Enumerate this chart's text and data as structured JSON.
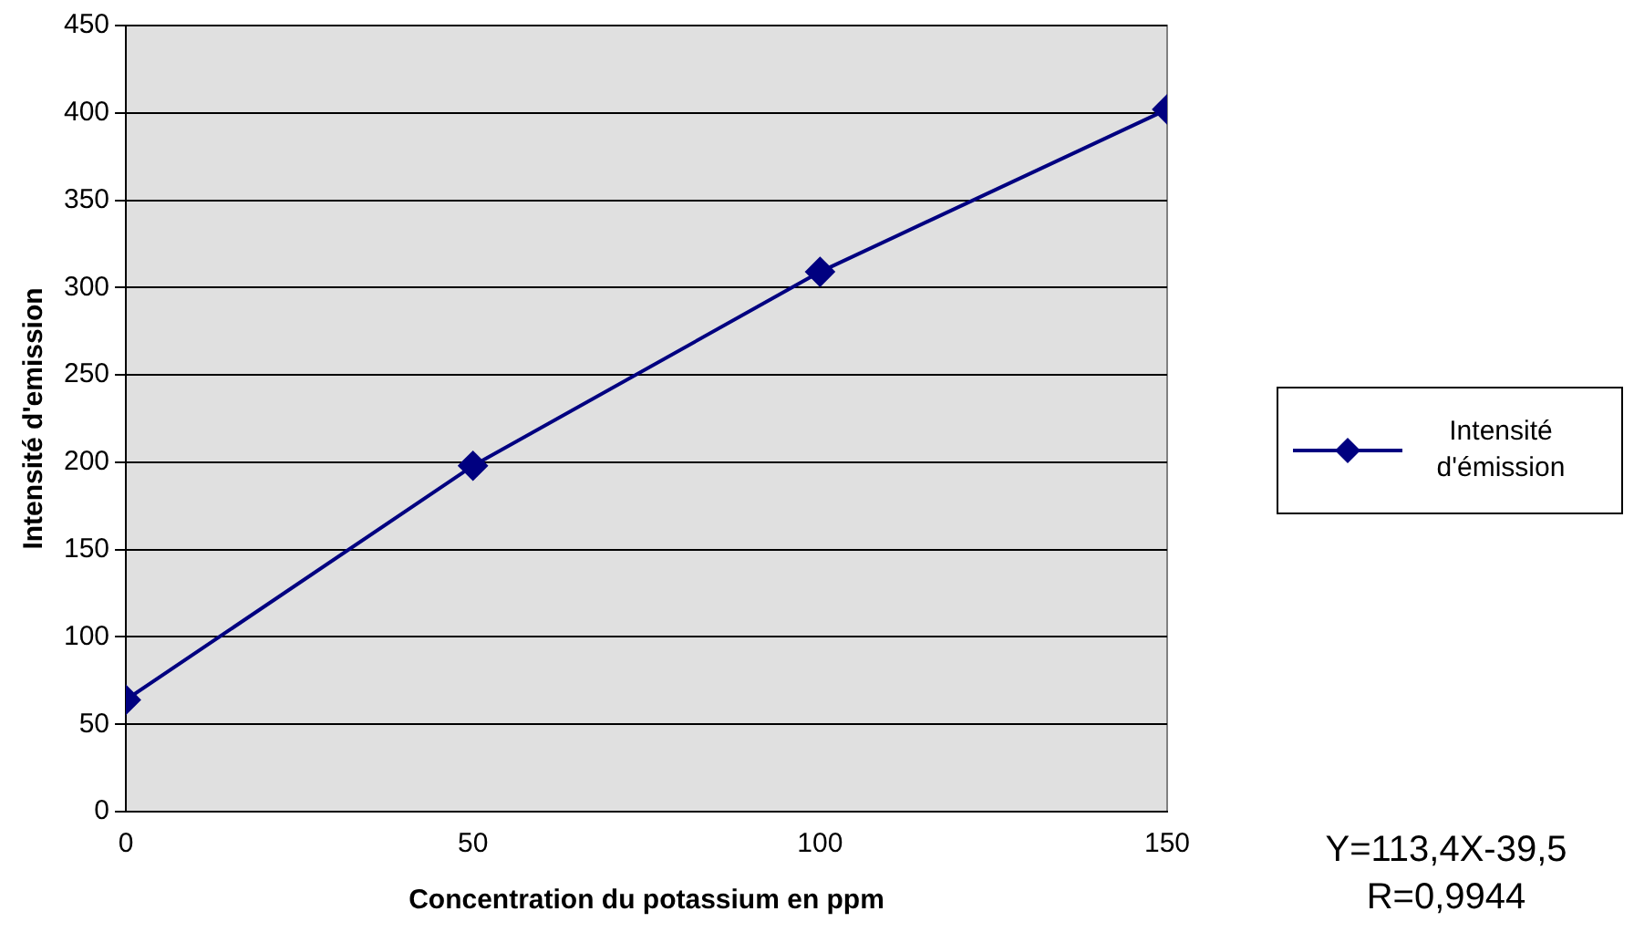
{
  "chart_data": {
    "type": "line",
    "xlabel": "Concentration du potassium en ppm",
    "ylabel": "Intensité d'emission",
    "x": [
      0,
      50,
      100,
      150
    ],
    "series": [
      {
        "name": "Intensité d'émission",
        "color": "#000080",
        "values": [
          64,
          198,
          309,
          402
        ]
      }
    ],
    "xlim": [
      0,
      150
    ],
    "xticks": [
      0,
      50,
      100,
      150
    ],
    "ylim": [
      0,
      450
    ],
    "yticks": [
      0,
      50,
      100,
      150,
      200,
      250,
      300,
      350,
      400,
      450
    ],
    "grid": "y",
    "legend": "right",
    "marker": "diamond",
    "line_style": "solid",
    "annotations": [
      "Y=113,4X-39,5",
      "R=0,9944"
    ]
  }
}
